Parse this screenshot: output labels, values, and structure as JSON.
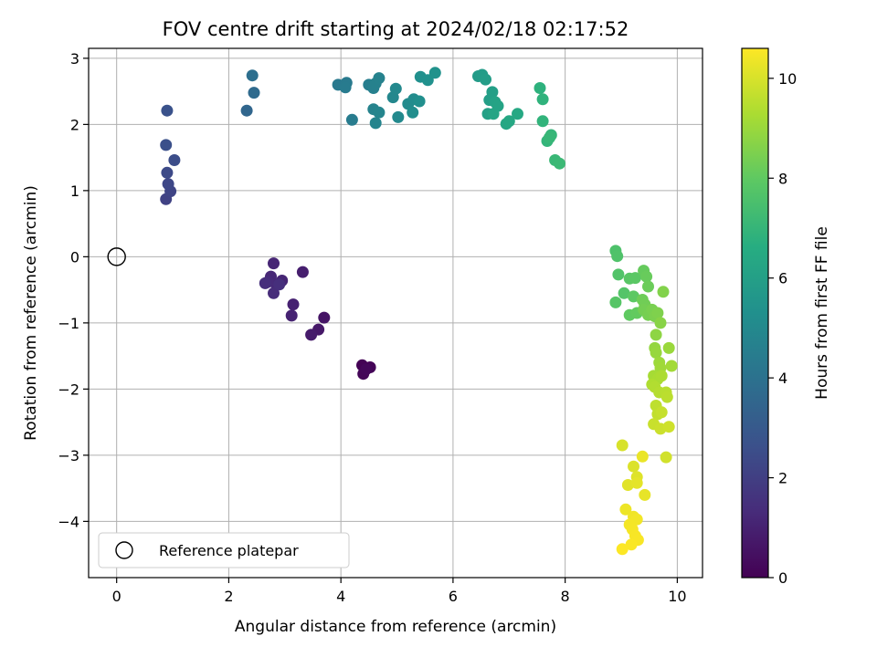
{
  "chart_data": {
    "type": "scatter",
    "title": "FOV centre drift starting at 2024/02/18 02:17:52",
    "xlabel": "Angular distance from reference (arcmin)",
    "ylabel": "Rotation from reference (arcmin)",
    "xlim": [
      -0.5,
      10.45
    ],
    "ylim": [
      -4.85,
      3.15
    ],
    "xticks": [
      0,
      2,
      4,
      6,
      8,
      10
    ],
    "xtick_labels": [
      "0",
      "2",
      "4",
      "6",
      "8",
      "10"
    ],
    "yticks": [
      -4,
      -3,
      -2,
      -1,
      0,
      1,
      2,
      3
    ],
    "ytick_labels": [
      "−4",
      "−3",
      "−2",
      "−1",
      "0",
      "1",
      "2",
      "3"
    ],
    "grid": true,
    "colormap": "viridis",
    "colorbar": {
      "label": "Hours from first FF file",
      "range": [
        0,
        10.6
      ],
      "ticks": [
        0,
        2,
        4,
        6,
        8,
        10
      ],
      "tick_labels": [
        "0",
        "2",
        "4",
        "6",
        "8",
        "10"
      ]
    },
    "reference": {
      "name": "Reference platepar",
      "x": 0,
      "y": 0,
      "color": "#000000"
    },
    "legend": {
      "position": "lower-left",
      "entries": [
        "Reference platepar"
      ]
    },
    "points": [
      {
        "x": 4.38,
        "y": -1.64,
        "h": 0.05
      },
      {
        "x": 4.52,
        "y": -1.67,
        "h": 0.1
      },
      {
        "x": 4.4,
        "y": -1.77,
        "h": 0.15
      },
      {
        "x": 4.45,
        "y": -1.7,
        "h": 0.2
      },
      {
        "x": 3.7,
        "y": -0.92,
        "h": 0.6
      },
      {
        "x": 3.6,
        "y": -1.1,
        "h": 0.7
      },
      {
        "x": 3.47,
        "y": -1.18,
        "h": 0.8
      },
      {
        "x": 3.32,
        "y": -0.23,
        "h": 0.9
      },
      {
        "x": 3.15,
        "y": -0.72,
        "h": 1.0
      },
      {
        "x": 3.12,
        "y": -0.89,
        "h": 1.05
      },
      {
        "x": 2.95,
        "y": -0.36,
        "h": 1.1
      },
      {
        "x": 2.8,
        "y": -0.1,
        "h": 1.15
      },
      {
        "x": 2.75,
        "y": -0.3,
        "h": 1.2
      },
      {
        "x": 2.85,
        "y": -0.42,
        "h": 1.25
      },
      {
        "x": 2.7,
        "y": -0.38,
        "h": 1.3
      },
      {
        "x": 2.8,
        "y": -0.55,
        "h": 1.35
      },
      {
        "x": 2.65,
        "y": -0.4,
        "h": 1.4
      },
      {
        "x": 2.9,
        "y": -0.42,
        "h": 1.45
      },
      {
        "x": 0.88,
        "y": 0.87,
        "h": 2.1
      },
      {
        "x": 0.96,
        "y": 0.99,
        "h": 2.2
      },
      {
        "x": 0.92,
        "y": 1.1,
        "h": 2.3
      },
      {
        "x": 0.9,
        "y": 1.27,
        "h": 2.4
      },
      {
        "x": 1.03,
        "y": 1.46,
        "h": 2.5
      },
      {
        "x": 0.88,
        "y": 1.69,
        "h": 2.6
      },
      {
        "x": 0.9,
        "y": 2.21,
        "h": 2.7
      },
      {
        "x": 2.32,
        "y": 2.21,
        "h": 3.5
      },
      {
        "x": 2.45,
        "y": 2.48,
        "h": 3.7
      },
      {
        "x": 2.42,
        "y": 2.74,
        "h": 3.9
      },
      {
        "x": 3.95,
        "y": 2.6,
        "h": 4.3
      },
      {
        "x": 4.1,
        "y": 2.63,
        "h": 4.35
      },
      {
        "x": 4.08,
        "y": 2.56,
        "h": 4.4
      },
      {
        "x": 4.2,
        "y": 2.07,
        "h": 4.45
      },
      {
        "x": 4.5,
        "y": 2.6,
        "h": 4.55
      },
      {
        "x": 4.58,
        "y": 2.55,
        "h": 4.6
      },
      {
        "x": 4.62,
        "y": 2.62,
        "h": 4.65
      },
      {
        "x": 4.68,
        "y": 2.7,
        "h": 4.7
      },
      {
        "x": 4.58,
        "y": 2.23,
        "h": 4.75
      },
      {
        "x": 4.62,
        "y": 2.02,
        "h": 4.8
      },
      {
        "x": 4.68,
        "y": 2.18,
        "h": 4.85
      },
      {
        "x": 4.93,
        "y": 2.41,
        "h": 4.9
      },
      {
        "x": 4.98,
        "y": 2.54,
        "h": 4.95
      },
      {
        "x": 5.02,
        "y": 2.11,
        "h": 5.0
      },
      {
        "x": 5.2,
        "y": 2.31,
        "h": 5.1
      },
      {
        "x": 5.3,
        "y": 2.38,
        "h": 5.15
      },
      {
        "x": 5.28,
        "y": 2.18,
        "h": 5.2
      },
      {
        "x": 5.4,
        "y": 2.35,
        "h": 5.25
      },
      {
        "x": 5.42,
        "y": 2.72,
        "h": 5.3
      },
      {
        "x": 5.55,
        "y": 2.67,
        "h": 5.35
      },
      {
        "x": 5.68,
        "y": 2.78,
        "h": 5.4
      },
      {
        "x": 6.45,
        "y": 2.73,
        "h": 5.8
      },
      {
        "x": 6.52,
        "y": 2.75,
        "h": 5.85
      },
      {
        "x": 6.58,
        "y": 2.68,
        "h": 5.9
      },
      {
        "x": 6.65,
        "y": 2.37,
        "h": 5.95
      },
      {
        "x": 6.7,
        "y": 2.49,
        "h": 6.0
      },
      {
        "x": 6.62,
        "y": 2.16,
        "h": 6.05
      },
      {
        "x": 6.75,
        "y": 2.34,
        "h": 6.1
      },
      {
        "x": 6.8,
        "y": 2.28,
        "h": 6.15
      },
      {
        "x": 6.72,
        "y": 2.16,
        "h": 6.2
      },
      {
        "x": 6.95,
        "y": 2.01,
        "h": 6.3
      },
      {
        "x": 7.0,
        "y": 2.05,
        "h": 6.35
      },
      {
        "x": 7.15,
        "y": 2.16,
        "h": 6.4
      },
      {
        "x": 7.55,
        "y": 2.55,
        "h": 6.8
      },
      {
        "x": 7.6,
        "y": 2.38,
        "h": 6.85
      },
      {
        "x": 7.6,
        "y": 2.05,
        "h": 6.9
      },
      {
        "x": 7.68,
        "y": 1.75,
        "h": 6.95
      },
      {
        "x": 7.75,
        "y": 1.84,
        "h": 7.0
      },
      {
        "x": 7.72,
        "y": 1.8,
        "h": 7.05
      },
      {
        "x": 7.82,
        "y": 1.46,
        "h": 7.1
      },
      {
        "x": 7.9,
        "y": 1.41,
        "h": 7.15
      },
      {
        "x": 8.9,
        "y": 0.09,
        "h": 7.6
      },
      {
        "x": 8.93,
        "y": 0.01,
        "h": 7.65
      },
      {
        "x": 8.95,
        "y": -0.27,
        "h": 7.7
      },
      {
        "x": 9.05,
        "y": -0.55,
        "h": 7.75
      },
      {
        "x": 8.9,
        "y": -0.69,
        "h": 7.8
      },
      {
        "x": 9.15,
        "y": -0.33,
        "h": 7.85
      },
      {
        "x": 9.25,
        "y": -0.32,
        "h": 7.9
      },
      {
        "x": 9.22,
        "y": -0.6,
        "h": 7.95
      },
      {
        "x": 9.15,
        "y": -0.88,
        "h": 8.0
      },
      {
        "x": 9.28,
        "y": -0.85,
        "h": 8.05
      },
      {
        "x": 9.4,
        "y": -0.21,
        "h": 8.1
      },
      {
        "x": 9.45,
        "y": -0.3,
        "h": 8.15
      },
      {
        "x": 9.48,
        "y": -0.45,
        "h": 8.2
      },
      {
        "x": 9.38,
        "y": -0.65,
        "h": 8.25
      },
      {
        "x": 9.42,
        "y": -0.72,
        "h": 8.3
      },
      {
        "x": 9.4,
        "y": -0.8,
        "h": 8.35
      },
      {
        "x": 9.48,
        "y": -0.88,
        "h": 8.4
      },
      {
        "x": 9.55,
        "y": -0.8,
        "h": 8.45
      },
      {
        "x": 9.6,
        "y": -0.9,
        "h": 8.5
      },
      {
        "x": 9.65,
        "y": -0.85,
        "h": 8.55
      },
      {
        "x": 9.75,
        "y": -0.53,
        "h": 8.6
      },
      {
        "x": 9.7,
        "y": -1.0,
        "h": 8.7
      },
      {
        "x": 9.62,
        "y": -1.18,
        "h": 8.8
      },
      {
        "x": 9.6,
        "y": -1.38,
        "h": 8.9
      },
      {
        "x": 9.62,
        "y": -1.45,
        "h": 8.95
      },
      {
        "x": 9.85,
        "y": -1.38,
        "h": 9.0
      },
      {
        "x": 9.68,
        "y": -1.6,
        "h": 9.05
      },
      {
        "x": 9.7,
        "y": -1.68,
        "h": 9.1
      },
      {
        "x": 9.9,
        "y": -1.65,
        "h": 9.15
      },
      {
        "x": 9.58,
        "y": -1.8,
        "h": 9.2
      },
      {
        "x": 9.65,
        "y": -1.85,
        "h": 9.25
      },
      {
        "x": 9.72,
        "y": -1.8,
        "h": 9.3
      },
      {
        "x": 9.55,
        "y": -1.93,
        "h": 9.35
      },
      {
        "x": 9.6,
        "y": -1.97,
        "h": 9.4
      },
      {
        "x": 9.68,
        "y": -2.05,
        "h": 9.45
      },
      {
        "x": 9.8,
        "y": -2.05,
        "h": 9.5
      },
      {
        "x": 9.82,
        "y": -2.12,
        "h": 9.55
      },
      {
        "x": 9.62,
        "y": -2.25,
        "h": 9.6
      },
      {
        "x": 9.65,
        "y": -2.38,
        "h": 9.65
      },
      {
        "x": 9.72,
        "y": -2.35,
        "h": 9.7
      },
      {
        "x": 9.58,
        "y": -2.53,
        "h": 9.75
      },
      {
        "x": 9.7,
        "y": -2.6,
        "h": 9.8
      },
      {
        "x": 9.85,
        "y": -2.57,
        "h": 9.85
      },
      {
        "x": 9.8,
        "y": -3.03,
        "h": 9.9
      },
      {
        "x": 9.02,
        "y": -2.85,
        "h": 10.0
      },
      {
        "x": 9.22,
        "y": -3.17,
        "h": 10.05
      },
      {
        "x": 9.28,
        "y": -3.33,
        "h": 10.1
      },
      {
        "x": 9.12,
        "y": -3.45,
        "h": 10.15
      },
      {
        "x": 9.28,
        "y": -3.42,
        "h": 10.2
      },
      {
        "x": 9.42,
        "y": -3.6,
        "h": 10.25
      },
      {
        "x": 9.38,
        "y": -3.02,
        "h": 10.3
      },
      {
        "x": 9.08,
        "y": -3.82,
        "h": 10.35
      },
      {
        "x": 9.22,
        "y": -3.93,
        "h": 10.4
      },
      {
        "x": 9.28,
        "y": -3.97,
        "h": 10.42
      },
      {
        "x": 9.15,
        "y": -4.05,
        "h": 10.45
      },
      {
        "x": 9.2,
        "y": -4.12,
        "h": 10.48
      },
      {
        "x": 9.25,
        "y": -4.22,
        "h": 10.5
      },
      {
        "x": 9.3,
        "y": -4.28,
        "h": 10.52
      },
      {
        "x": 9.18,
        "y": -4.35,
        "h": 10.55
      },
      {
        "x": 9.02,
        "y": -4.42,
        "h": 10.58
      }
    ]
  }
}
